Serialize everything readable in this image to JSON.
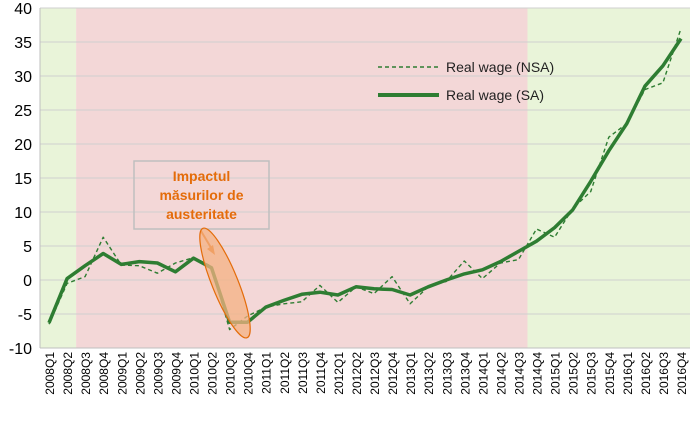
{
  "chart_data": {
    "type": "line",
    "title": "",
    "xlabel": "",
    "ylabel": "",
    "ylim": [
      -10,
      40
    ],
    "yticks": [
      -10,
      -5,
      0,
      5,
      10,
      15,
      20,
      25,
      30,
      35,
      40
    ],
    "grid": true,
    "legend_position": "top-right",
    "categories": [
      "2008Q1",
      "2008Q2",
      "2008Q3",
      "2008Q4",
      "2009Q1",
      "2009Q2",
      "2009Q3",
      "2009Q4",
      "2010Q1",
      "2010Q2",
      "2010Q3",
      "2010Q4",
      "2011Q1",
      "2011Q2",
      "2011Q3",
      "2011Q4",
      "2012Q1",
      "2012Q2",
      "2012Q3",
      "2012Q4",
      "2013Q1",
      "2013Q2",
      "2013Q3",
      "2013Q4",
      "2014Q1",
      "2014Q2",
      "2014Q3",
      "2014Q4",
      "2015Q1",
      "2015Q2",
      "2015Q3",
      "2015Q4",
      "2016Q1",
      "2016Q2",
      "2016Q3",
      "2016Q4"
    ],
    "series": [
      {
        "name": "Real wage (NSA)",
        "style": "dashed",
        "color": "#2e7d32",
        "values": [
          -6.5,
          -0.5,
          0.5,
          6.3,
          2.2,
          2.1,
          1.0,
          2.5,
          3.3,
          2.0,
          -7.3,
          -5.3,
          -4.0,
          -3.5,
          -3.2,
          -0.8,
          -3.3,
          -1.0,
          -2.0,
          0.5,
          -3.5,
          -1.0,
          -0.2,
          2.8,
          0.2,
          2.5,
          3.0,
          7.5,
          6.3,
          10.5,
          13.0,
          21.0,
          23.0,
          28.0,
          29.0,
          37.0
        ]
      },
      {
        "name": "Real wage (SA)",
        "style": "solid",
        "color": "#2e7d32",
        "values": [
          -6.3,
          0.2,
          2.1,
          3.9,
          2.3,
          2.7,
          2.5,
          1.2,
          3.2,
          1.8,
          -6.2,
          -6.2,
          -4.0,
          -3.0,
          -2.1,
          -1.8,
          -2.2,
          -1.0,
          -1.3,
          -1.4,
          -2.2,
          -1.0,
          0.0,
          0.9,
          1.5,
          2.7,
          4.2,
          5.7,
          7.7,
          10.3,
          14.5,
          19.0,
          23.0,
          28.5,
          31.5,
          35.5
        ]
      }
    ],
    "background_regions": [
      {
        "from": "2008Q1",
        "to": "2008Q2",
        "color": "#e9f4d9"
      },
      {
        "from": "2008Q3",
        "to": "2014Q3",
        "color": "#f3d7d7"
      },
      {
        "from": "2014Q4",
        "to": "2016Q4",
        "color": "#e9f4d9"
      }
    ],
    "annotation": {
      "lines": [
        "Impactul",
        "măsurilor de",
        "austeritate"
      ],
      "color": "#e46c0a",
      "target": "2010Q3"
    }
  }
}
